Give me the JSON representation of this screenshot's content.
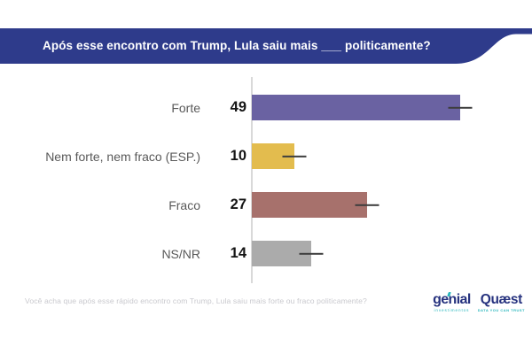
{
  "header": {
    "title": "Após esse encontro com Trump, Lula saiu mais ___ politicamente?",
    "background_color": "#2e3b8b",
    "text_color": "#ffffff"
  },
  "chart_data": {
    "type": "bar",
    "orientation": "horizontal",
    "title": "Após esse encontro com Trump, Lula saiu mais ___ politicamente?",
    "categories": [
      "Forte",
      "Nem forte, nem fraco (ESP.)",
      "Fraco",
      "NS/NR"
    ],
    "values": [
      49,
      10,
      27,
      14
    ],
    "bar_colors": [
      "#6a62a2",
      "#e3bc4e",
      "#a7716c",
      "#ababab"
    ],
    "error_whisker_at_bar_end": true,
    "xlim": [
      0,
      66
    ],
    "grid": "none",
    "legend": "none",
    "axis_line_color": "#d9d9d9",
    "label_color": "#595959",
    "value_color": "#141414"
  },
  "footnote": "Você acha que após esse rápido encontro com Trump, Lula saiu mais forte ou fraco politicamente?",
  "branding": {
    "logos": [
      {
        "name": "genial",
        "wordmark": "genial",
        "tagline": "investimentos"
      },
      {
        "name": "quaest",
        "wordmark": "Quæst",
        "tagline": "DATA YOU CAN TRUST"
      }
    ]
  }
}
